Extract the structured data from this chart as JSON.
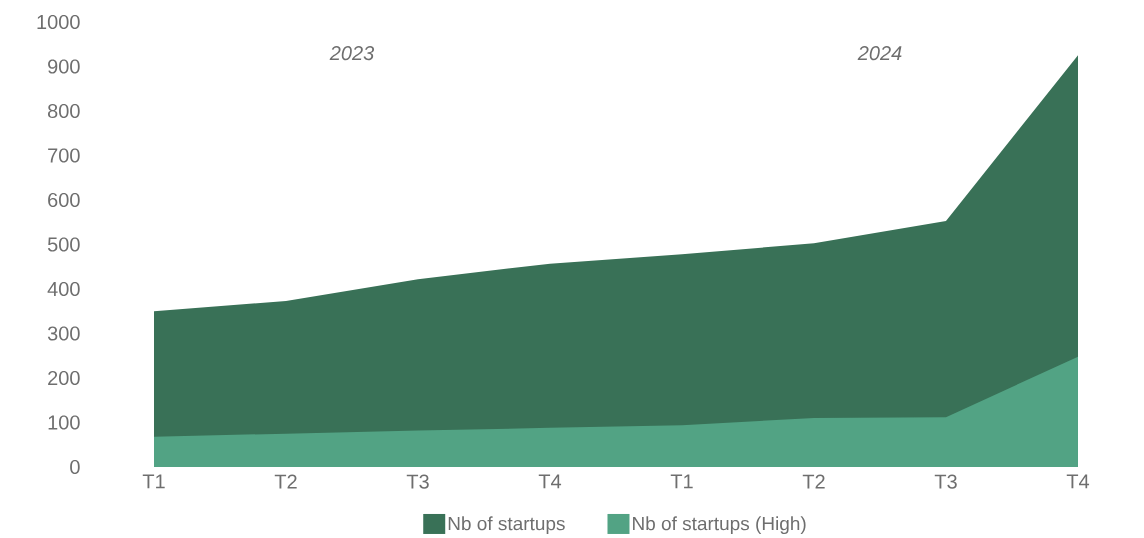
{
  "chart_data": {
    "type": "area",
    "categories": [
      "T1",
      "T2",
      "T3",
      "T4",
      "T1",
      "T2",
      "T3",
      "T4"
    ],
    "series": [
      {
        "name": "Nb of startups",
        "color": "#397157",
        "values": [
          350,
          373,
          422,
          457,
          478,
          503,
          553,
          925
        ]
      },
      {
        "name": "Nb of startups (High)",
        "color": "#52a384",
        "values": [
          68,
          75,
          82,
          88,
          94,
          110,
          112,
          248
        ]
      }
    ],
    "ylim": [
      0,
      1000
    ],
    "yticks": [
      0,
      100,
      200,
      300,
      400,
      500,
      600,
      700,
      800,
      900,
      1000
    ],
    "annotations": [
      "2023",
      "2024"
    ],
    "legend": "bottom",
    "grid": false
  }
}
